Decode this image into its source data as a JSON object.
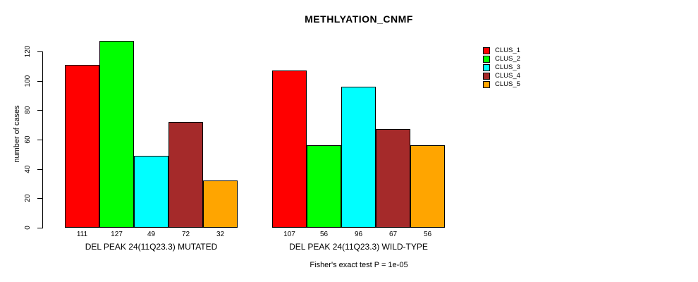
{
  "chart_data": {
    "type": "bar",
    "title": "METHLYATION_CNMF",
    "ylabel": "number of cases",
    "xlabel": "",
    "ylim": [
      0,
      120
    ],
    "yticks": [
      0,
      20,
      40,
      60,
      80,
      100,
      120
    ],
    "grid": false,
    "legend_position": "right",
    "bar_value_labels": true,
    "categories": [
      "DEL PEAK 24(11Q23.3) MUTATED",
      "DEL PEAK 24(11Q23.3) WILD-TYPE"
    ],
    "series": [
      {
        "name": "CLUS_1",
        "color": "#FF0000",
        "values": [
          111,
          107
        ]
      },
      {
        "name": "CLUS_2",
        "color": "#00FF00",
        "values": [
          127,
          56
        ]
      },
      {
        "name": "CLUS_3",
        "color": "#00FFFF",
        "values": [
          49,
          96
        ]
      },
      {
        "name": "CLUS_4",
        "color": "#A52A2A",
        "values": [
          72,
          67
        ]
      },
      {
        "name": "CLUS_5",
        "color": "#FFA500",
        "values": [
          32,
          56
        ]
      }
    ],
    "footnote": "Fisher's exact test P = 1e-05"
  }
}
